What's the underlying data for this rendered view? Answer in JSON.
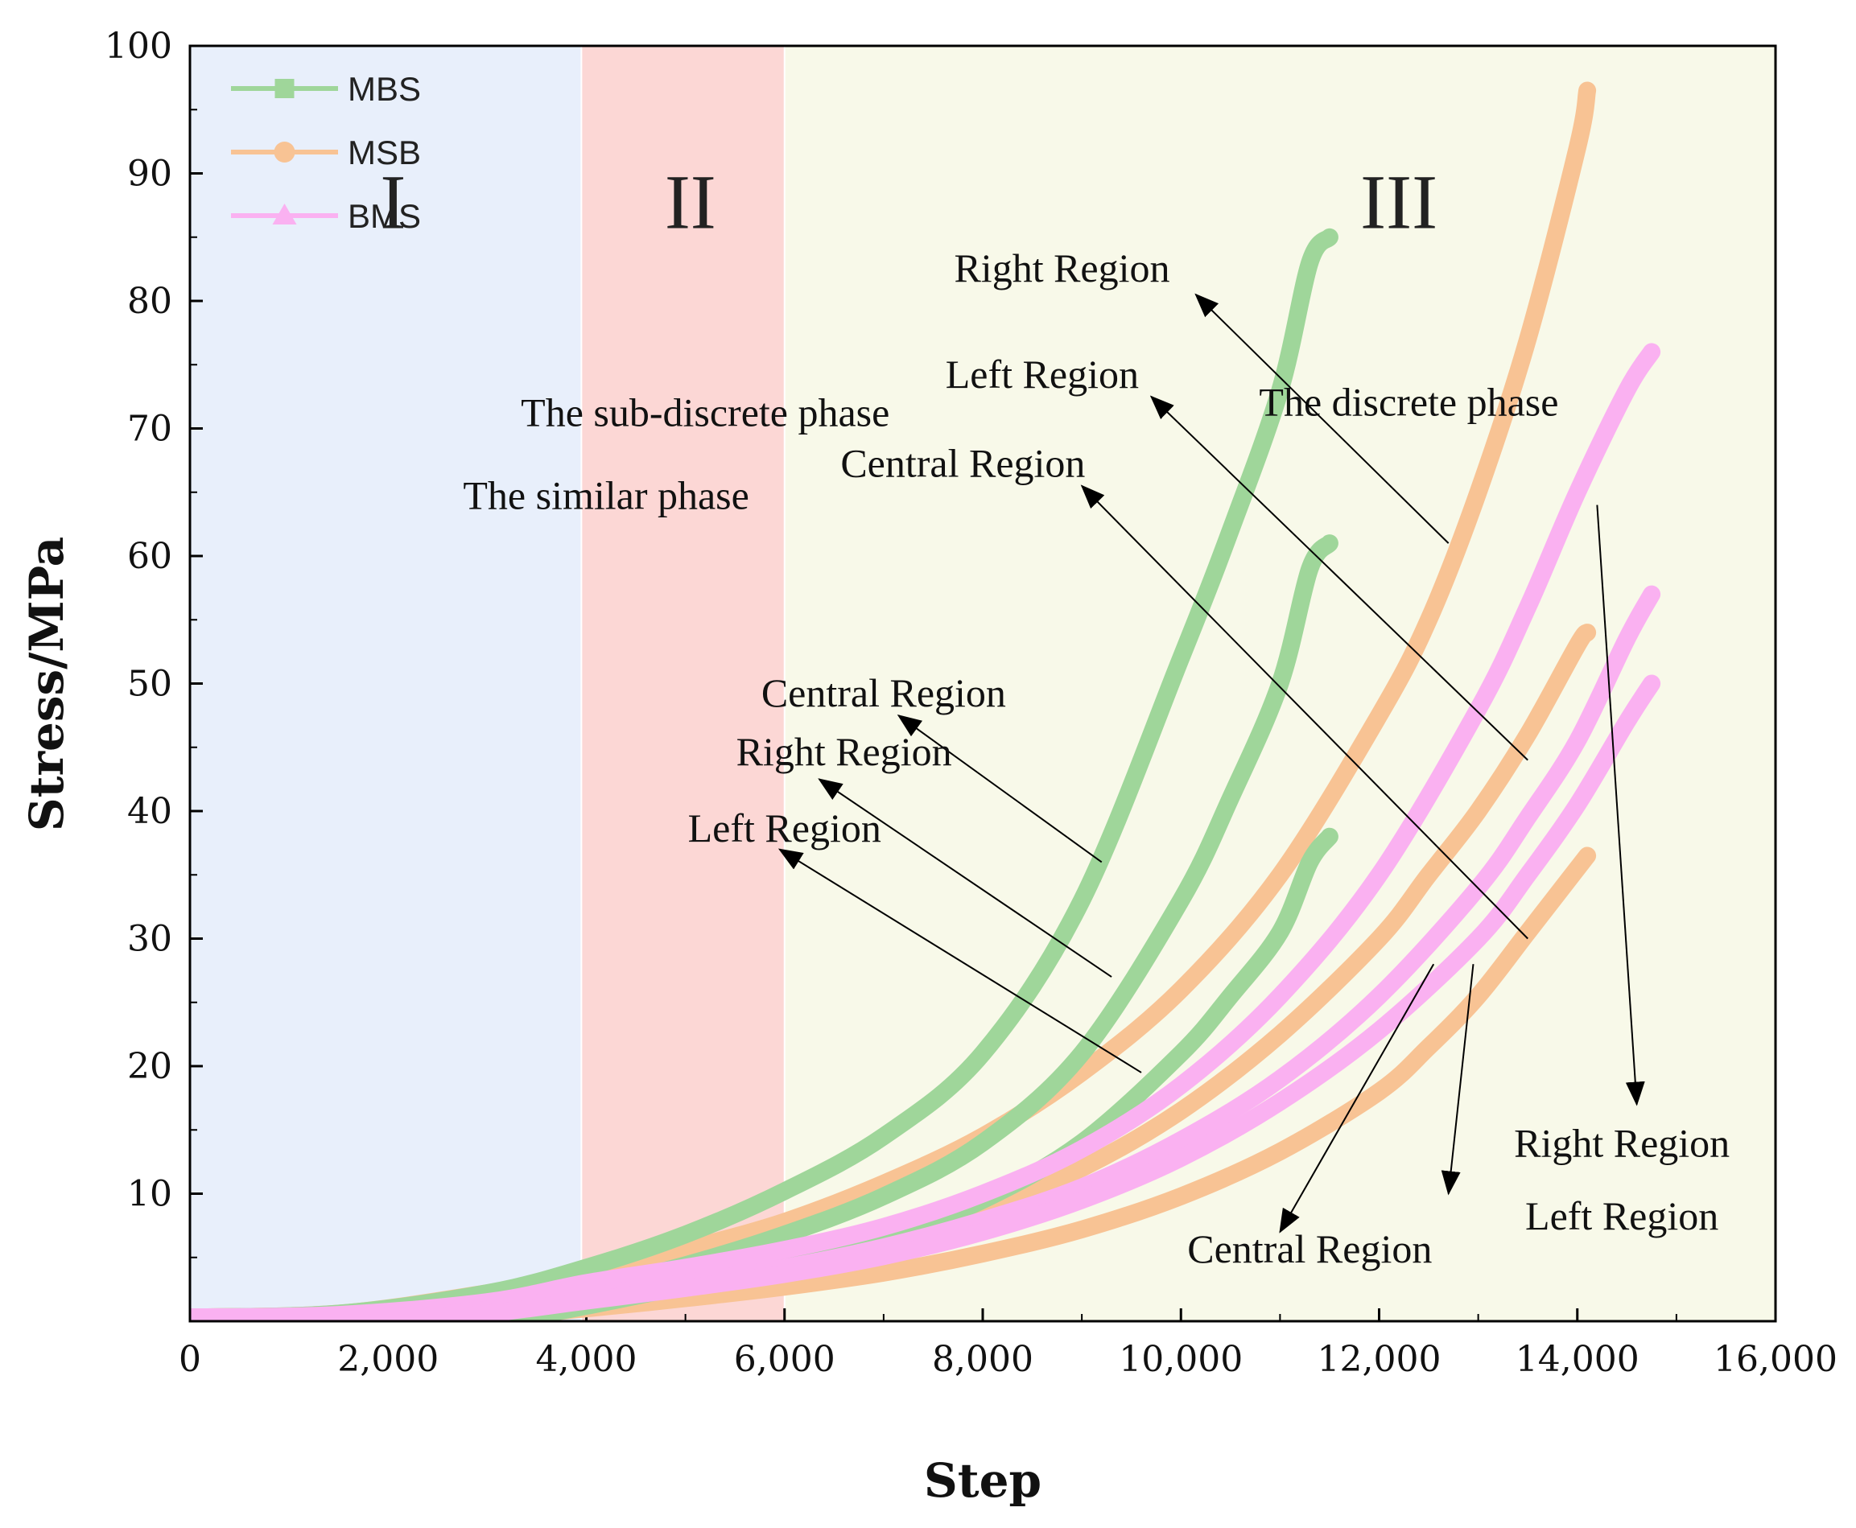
{
  "chart_data": {
    "type": "line",
    "xlabel": "Step",
    "ylabel": "Stress/MPa",
    "xlim": [
      0,
      16000
    ],
    "ylim": [
      0,
      100
    ],
    "xticks": [
      0,
      2000,
      4000,
      6000,
      8000,
      10000,
      12000,
      14000,
      16000
    ],
    "xtick_labels": [
      "0",
      "2,000",
      "4,000",
      "6,000",
      "8,000",
      "10,000",
      "12,000",
      "14,000",
      "16,000"
    ],
    "yticks": [
      10,
      20,
      30,
      40,
      50,
      60,
      70,
      80,
      90,
      100
    ],
    "ytick_labels": [
      "10",
      "20",
      "30",
      "40",
      "50",
      "60",
      "70",
      "80",
      "90",
      "100"
    ],
    "phases": [
      {
        "numeral": "I",
        "label": "The similar phase",
        "x_start": 0,
        "x_end": 3950,
        "color": "#e8effb"
      },
      {
        "numeral": "II",
        "label": "The sub-discrete phase",
        "x_start": 3950,
        "x_end": 6000,
        "color": "#fcd7d5"
      },
      {
        "numeral": "III",
        "label": "The discrete phase",
        "x_start": 6000,
        "x_end": 16000,
        "color": "#f8f9e9"
      }
    ],
    "legend": [
      {
        "name": "MBS",
        "color": "#9fd69a",
        "marker": "square"
      },
      {
        "name": "MSB",
        "color": "#f8c394",
        "marker": "circle"
      },
      {
        "name": "BMS",
        "color": "#fab1f1",
        "marker": "triangle"
      }
    ],
    "series": [
      {
        "group": "MBS",
        "region": "Central Region",
        "color": "#9fd69a",
        "points": [
          [
            0,
            0.3
          ],
          [
            1500,
            0.6
          ],
          [
            3000,
            2.2
          ],
          [
            4000,
            4.2
          ],
          [
            5000,
            6.8
          ],
          [
            6000,
            10.2
          ],
          [
            7000,
            14.5
          ],
          [
            8000,
            21
          ],
          [
            9000,
            33
          ],
          [
            10000,
            52
          ],
          [
            10500,
            62
          ],
          [
            11000,
            73
          ],
          [
            11300,
            83
          ],
          [
            11500,
            85
          ]
        ]
      },
      {
        "group": "MBS",
        "region": "Right Region",
        "color": "#9fd69a",
        "points": [
          [
            0,
            0.3
          ],
          [
            2000,
            0.5
          ],
          [
            3000,
            1.2
          ],
          [
            4000,
            2.5
          ],
          [
            5000,
            4.4
          ],
          [
            6000,
            6.8
          ],
          [
            7000,
            9.8
          ],
          [
            8000,
            14
          ],
          [
            9000,
            21
          ],
          [
            10000,
            33
          ],
          [
            10500,
            41
          ],
          [
            11000,
            50
          ],
          [
            11300,
            59
          ],
          [
            11500,
            61
          ]
        ]
      },
      {
        "group": "MBS",
        "region": "Left Region",
        "color": "#9fd69a",
        "points": [
          [
            0,
            0.3
          ],
          [
            2500,
            0.3
          ],
          [
            3500,
            0.6
          ],
          [
            4000,
            1.2
          ],
          [
            5000,
            2.8
          ],
          [
            6000,
            4.5
          ],
          [
            7000,
            6.5
          ],
          [
            8000,
            9.5
          ],
          [
            9000,
            14
          ],
          [
            10000,
            21
          ],
          [
            10500,
            25.5
          ],
          [
            11000,
            30.5
          ],
          [
            11300,
            36
          ],
          [
            11500,
            38
          ]
        ]
      },
      {
        "group": "MSB",
        "region": "Right Region",
        "color": "#f8c394",
        "points": [
          [
            0,
            0.3
          ],
          [
            1500,
            0.6
          ],
          [
            3000,
            2.2
          ],
          [
            4000,
            3.6
          ],
          [
            5000,
            5.6
          ],
          [
            6000,
            7.8
          ],
          [
            7000,
            10.8
          ],
          [
            8000,
            14.5
          ],
          [
            9000,
            19.5
          ],
          [
            10000,
            26
          ],
          [
            11000,
            35
          ],
          [
            12000,
            47.5
          ],
          [
            12500,
            55
          ],
          [
            13000,
            65
          ],
          [
            13500,
            77
          ],
          [
            14000,
            92
          ],
          [
            14100,
            96.5
          ]
        ]
      },
      {
        "group": "MSB",
        "region": "Left Region",
        "color": "#f8c394",
        "points": [
          [
            0,
            0.3
          ],
          [
            2000,
            0.5
          ],
          [
            3000,
            1.0
          ],
          [
            4000,
            2.0
          ],
          [
            5000,
            3.2
          ],
          [
            6000,
            4.6
          ],
          [
            7000,
            6.4
          ],
          [
            8000,
            8.8
          ],
          [
            9000,
            12
          ],
          [
            10000,
            16.5
          ],
          [
            11000,
            22.5
          ],
          [
            12000,
            30
          ],
          [
            12500,
            35
          ],
          [
            13000,
            40
          ],
          [
            13500,
            46
          ],
          [
            14000,
            53
          ],
          [
            14100,
            54
          ]
        ]
      },
      {
        "group": "MSB",
        "region": "Central Region",
        "color": "#f8c394",
        "points": [
          [
            0,
            0.3
          ],
          [
            2500,
            0.3
          ],
          [
            3000,
            0.3
          ],
          [
            4000,
            1.0
          ],
          [
            5000,
            1.8
          ],
          [
            6000,
            2.7
          ],
          [
            7000,
            3.8
          ],
          [
            8000,
            5.3
          ],
          [
            9000,
            7.2
          ],
          [
            10000,
            9.8
          ],
          [
            11000,
            13.3
          ],
          [
            12000,
            18
          ],
          [
            12500,
            21.5
          ],
          [
            13000,
            25.5
          ],
          [
            13500,
            30.5
          ],
          [
            14000,
            35.5
          ],
          [
            14100,
            36.5
          ]
        ]
      },
      {
        "group": "BMS",
        "region": "Right Region",
        "color": "#fab1f1",
        "points": [
          [
            0,
            0.3
          ],
          [
            1500,
            0.5
          ],
          [
            3000,
            1.5
          ],
          [
            4000,
            3.0
          ],
          [
            5000,
            4.2
          ],
          [
            6000,
            5.6
          ],
          [
            7000,
            7.4
          ],
          [
            8000,
            10
          ],
          [
            9000,
            13.5
          ],
          [
            10000,
            18.5
          ],
          [
            11000,
            25.5
          ],
          [
            12000,
            35
          ],
          [
            13000,
            48
          ],
          [
            13500,
            56
          ],
          [
            14000,
            65
          ],
          [
            14500,
            73
          ],
          [
            14750,
            76
          ]
        ]
      },
      {
        "group": "BMS",
        "region": "Left Region",
        "color": "#fab1f1",
        "points": [
          [
            0,
            0.3
          ],
          [
            2000,
            0.4
          ],
          [
            3000,
            0.9
          ],
          [
            4000,
            2.0
          ],
          [
            5000,
            3.0
          ],
          [
            6000,
            4.2
          ],
          [
            7000,
            5.8
          ],
          [
            8000,
            7.9
          ],
          [
            9000,
            10.5
          ],
          [
            10000,
            14.2
          ],
          [
            11000,
            19
          ],
          [
            12000,
            25.5
          ],
          [
            13000,
            34
          ],
          [
            13500,
            39.5
          ],
          [
            14000,
            45.5
          ],
          [
            14500,
            53.5
          ],
          [
            14750,
            57
          ]
        ]
      },
      {
        "group": "BMS",
        "region": "Central Region",
        "color": "#fab1f1",
        "points": [
          [
            0,
            0.3
          ],
          [
            2500,
            0.4
          ],
          [
            3000,
            0.6
          ],
          [
            4000,
            1.6
          ],
          [
            5000,
            2.6
          ],
          [
            6000,
            3.7
          ],
          [
            7000,
            5.1
          ],
          [
            8000,
            7.0
          ],
          [
            9000,
            9.5
          ],
          [
            10000,
            12.8
          ],
          [
            11000,
            17.2
          ],
          [
            12000,
            22.8
          ],
          [
            13000,
            30
          ],
          [
            13500,
            35
          ],
          [
            14000,
            40.5
          ],
          [
            14500,
            47
          ],
          [
            14750,
            50
          ]
        ]
      }
    ],
    "annotations": [
      {
        "text": "Right Region",
        "tx": 8800,
        "ty": 81.5,
        "sx": 12700,
        "sy": 61,
        "ex": 10150,
        "ey": 80.5
      },
      {
        "text": "Left Region",
        "tx": 8600,
        "ty": 73.2,
        "sx": 13500,
        "sy": 44,
        "ex": 9700,
        "ey": 72.5
      },
      {
        "text": "Central Region",
        "tx": 7800,
        "ty": 66.2,
        "sx": 13500,
        "sy": 30,
        "ex": 9000,
        "ey": 65.5
      },
      {
        "text": "Central Region",
        "tx": 7000,
        "ty": 48.2,
        "sx": 9200,
        "sy": 36,
        "ex": 7150,
        "ey": 47.5
      },
      {
        "text": "Right Region",
        "tx": 6600,
        "ty": 43.6,
        "sx": 9300,
        "sy": 27,
        "ex": 6350,
        "ey": 42.5
      },
      {
        "text": "Left Region",
        "tx": 6000,
        "ty": 37.6,
        "sx": 9600,
        "sy": 19.5,
        "ex": 5950,
        "ey": 37
      },
      {
        "text": "Right Region",
        "tx": 14450,
        "ty": 12.9,
        "sx": 14200,
        "sy": 64,
        "ex": 14600,
        "ey": 17
      },
      {
        "text": "Left Region",
        "tx": 14450,
        "ty": 7.2,
        "sx": 12950,
        "sy": 28,
        "ex": 12700,
        "ey": 10
      },
      {
        "text": "Central Region",
        "tx": 11300,
        "ty": 4.6,
        "sx": 12550,
        "sy": 28,
        "ex": 11000,
        "ey": 7
      }
    ]
  }
}
